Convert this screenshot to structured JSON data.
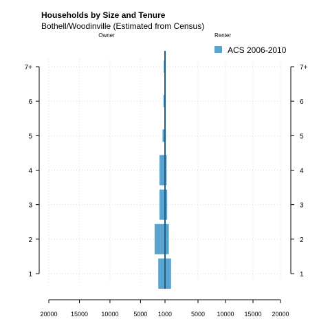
{
  "chart_data": {
    "type": "bar",
    "orientation": "horizontal-butterfly",
    "title": "Households by Size and Tenure",
    "subtitle": "Bothell/Woodinville (Estimated from Census)",
    "left_label": "Owner",
    "right_label": "Renter",
    "categories": [
      "1",
      "2",
      "3",
      "4",
      "5",
      "6",
      "7+"
    ],
    "series": [
      {
        "name": "ACS 2006-2010",
        "color": "#5ba3cf",
        "owner_values": [
          1100,
          1700,
          900,
          900,
          400,
          250,
          200
        ],
        "renter_values": [
          1100,
          700,
          400,
          300,
          150,
          50,
          50
        ]
      }
    ],
    "x_tick_labels": [
      "20000",
      "15000",
      "10000",
      "5000",
      "1000",
      "5000",
      "10000",
      "15000",
      "20000"
    ],
    "xlim": [
      -20000,
      20000
    ],
    "center_offset": 1000,
    "legend_position": "top-right",
    "grid": true
  }
}
